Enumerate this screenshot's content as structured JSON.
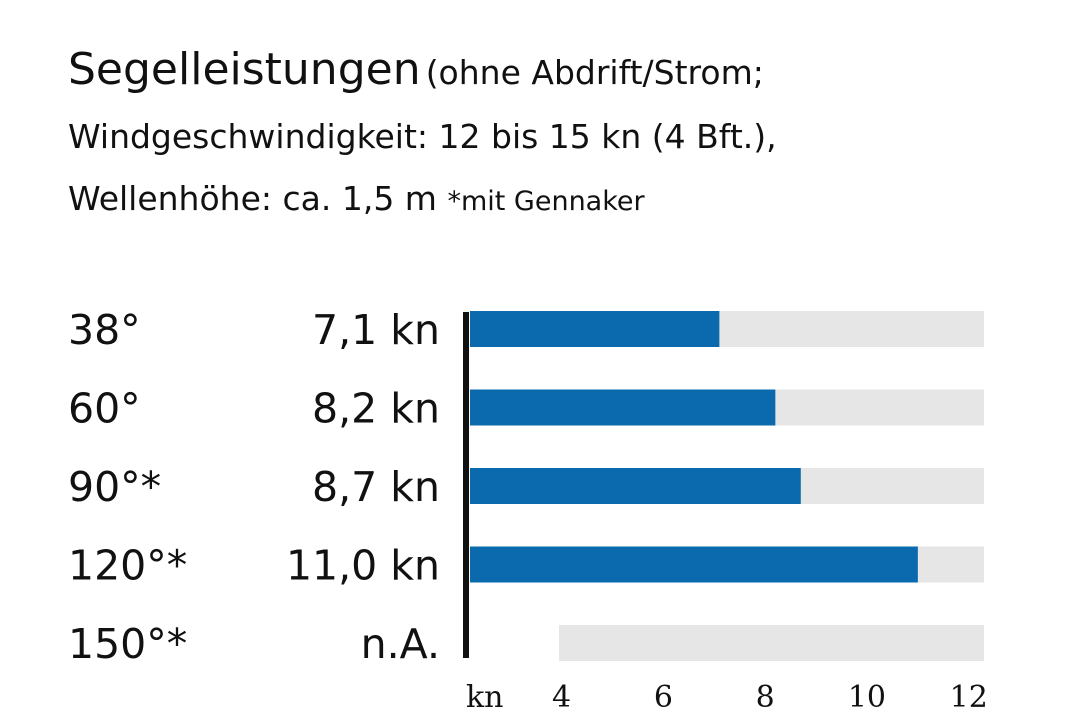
{
  "header": {
    "title_main": "Segelleistungen",
    "title_sub": "(ohne Abdrift/Strom;",
    "line2": "Windgeschwindigkeit: 12 bis 15 kn (4 Bft.),",
    "line3": "Wellenhöhe: ca. 1,5 m",
    "note": "*mit Gennaker"
  },
  "chart_data": {
    "type": "bar",
    "orientation": "horizontal",
    "title": "Segelleistungen",
    "xlabel": "kn",
    "categories": [
      "38°",
      "60°",
      "90°*",
      "120°*",
      "150°*"
    ],
    "value_labels": [
      "7,1 kn",
      "8,2 kn",
      "8,7 kn",
      "11,0 kn",
      "n.A."
    ],
    "values": [
      7.1,
      8.2,
      8.7,
      11.0,
      null
    ],
    "xlim": [
      2.2,
      12.3
    ],
    "xticks": [
      4,
      6,
      8,
      10,
      12
    ],
    "xtick_labels": [
      "4",
      "6",
      "8",
      "10",
      "12"
    ],
    "colors": {
      "bar": "#0a6aad",
      "track": "#e6e6e6",
      "axis": "#111111"
    },
    "grid": false,
    "legend": "none"
  }
}
